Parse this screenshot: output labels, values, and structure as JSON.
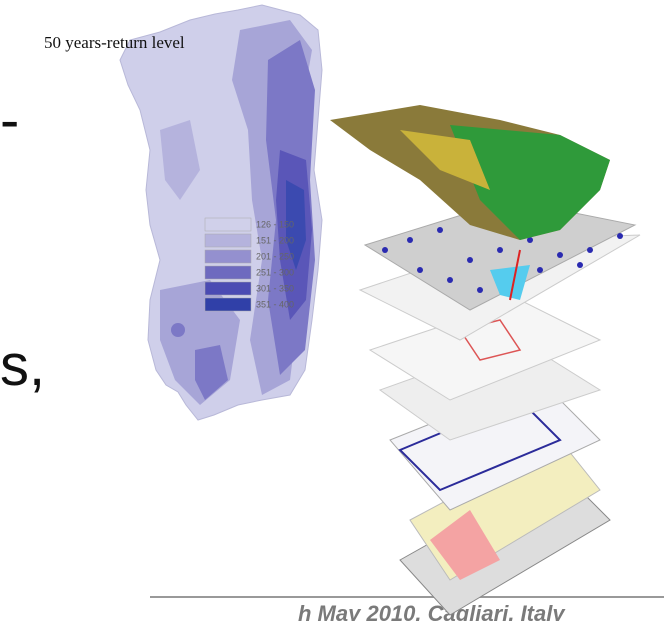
{
  "slide": {
    "fragment_top": "-",
    "fragment_middle": "s,",
    "footer": "h May 2010, Cagliari, Italy"
  },
  "map": {
    "caption": "50 years-return level",
    "legend": [
      {
        "label": "126 - 150",
        "color": "#d0d0ea"
      },
      {
        "label": "151 - 200",
        "color": "#b5b3dd"
      },
      {
        "label": "201 - 250",
        "color": "#9490cf"
      },
      {
        "label": "251 - 300",
        "color": "#6e6abf"
      },
      {
        "label": "301 - 350",
        "color": "#4b4bb3"
      },
      {
        "label": "351 - 400",
        "color": "#3040a8"
      }
    ]
  }
}
